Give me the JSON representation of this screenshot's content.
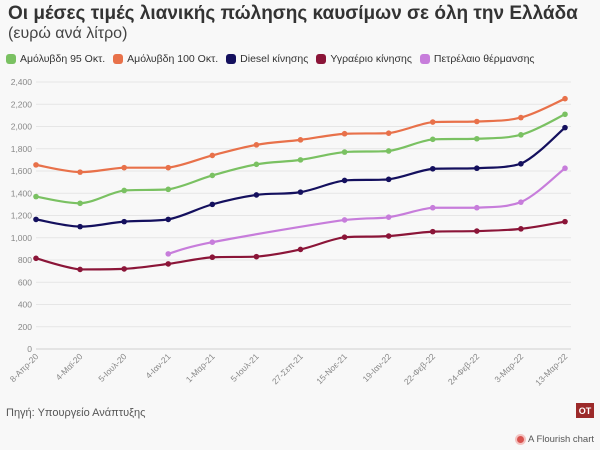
{
  "title": "Οι μέσες τιμές λιανικής πώλησης καυσίμων σε όλη την Ελλάδα",
  "subtitle": "(ευρώ ανά λίτρο)",
  "source": "Πηγή: Υπουργείο Ανάπτυξης",
  "logo_text": "OT",
  "flourish_label": "A Flourish chart",
  "chart_data": {
    "type": "line",
    "categories": [
      "8-Απρ-20",
      "4-Μαϊ-20",
      "5-Ιουλ-20",
      "4-Ιαν-21",
      "1-Μαρ-21",
      "5-Ιουλ-21",
      "27-Σεπ-21",
      "15-Νοε-21",
      "19-Ιαν-22",
      "22-Φεβ-22",
      "24-Φεβ-22",
      "3-Μαρ-22",
      "13-Μαρ-22"
    ],
    "yticks": [
      "0",
      "200",
      "400",
      "600",
      "800",
      "1,000",
      "1,200",
      "1,400",
      "1,600",
      "1,800",
      "2,000",
      "2,200",
      "2,400"
    ],
    "ylim": [
      0,
      2400
    ],
    "grid": true,
    "legend_position": "top",
    "series": [
      {
        "name": "Αμόλυβδη 95 Οκτ.",
        "color": "#7ac162",
        "values": [
          1370,
          1310,
          1425,
          1435,
          1560,
          1660,
          1700,
          1770,
          1780,
          1885,
          1890,
          1925,
          2110
        ]
      },
      {
        "name": "Αμόλυβδη 100 Οκτ.",
        "color": "#e8714a",
        "values": [
          1655,
          1590,
          1630,
          1630,
          1740,
          1835,
          1880,
          1935,
          1940,
          2040,
          2045,
          2080,
          2250
        ]
      },
      {
        "name": "Diesel κίνησης",
        "color": "#14105e",
        "values": [
          1165,
          1100,
          1145,
          1165,
          1300,
          1385,
          1410,
          1515,
          1525,
          1620,
          1625,
          1665,
          1990
        ]
      },
      {
        "name": "Υγραέριο κίνησης",
        "color": "#8b1538",
        "values": [
          815,
          715,
          720,
          765,
          825,
          830,
          895,
          1005,
          1015,
          1055,
          1060,
          1080,
          1145
        ]
      },
      {
        "name": "Πετρέλαιο θέρμανσης",
        "color": "#c77ddb",
        "values": [
          null,
          null,
          null,
          855,
          960,
          null,
          null,
          1160,
          1185,
          1270,
          1270,
          1320,
          1625
        ]
      }
    ]
  }
}
